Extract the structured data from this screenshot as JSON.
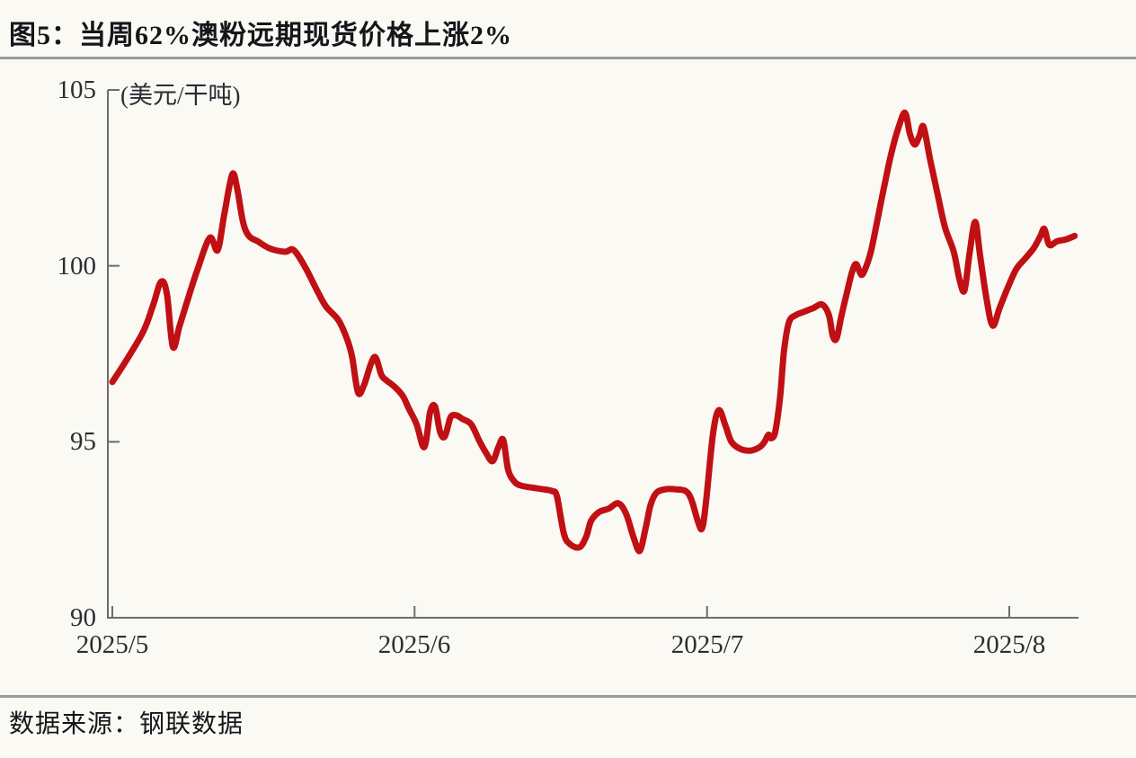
{
  "header": {
    "title": "图5：当周62%澳粉远期现货价格上涨2%"
  },
  "footer": {
    "source_label": "数据来源：钢联数据"
  },
  "chart_data": {
    "type": "line",
    "title": "当周62%澳粉远期现货价格上涨2%",
    "series_name": "62%澳粉远期现货价格",
    "unit_label": "(美元/干吨)",
    "line_color": "#C01014",
    "axis_color": "#6b6b70",
    "ylabel": "美元/干吨",
    "ylim": [
      90,
      105
    ],
    "y_ticks": [
      "105",
      "100",
      "95",
      "90"
    ],
    "x_unit": "days since 2025/5/1",
    "xlim_days": [
      0,
      99.1
    ],
    "x_ticks": [
      {
        "day": 0,
        "label": "2025/5"
      },
      {
        "day": 31,
        "label": "2025/6"
      },
      {
        "day": 61,
        "label": "2025/7"
      },
      {
        "day": 92,
        "label": "2025/8"
      }
    ],
    "grid": false,
    "legend": "none",
    "points": [
      [
        0,
        96.7
      ],
      [
        1.4,
        97.3
      ],
      [
        3.2,
        98.15
      ],
      [
        4.2,
        98.9
      ],
      [
        5.0,
        99.55
      ],
      [
        5.6,
        99.2
      ],
      [
        6.2,
        97.7
      ],
      [
        6.9,
        98.3
      ],
      [
        7.8,
        99.1
      ],
      [
        8.8,
        99.95
      ],
      [
        10.0,
        100.8
      ],
      [
        10.8,
        100.45
      ],
      [
        11.5,
        101.5
      ],
      [
        12.3,
        102.6
      ],
      [
        12.8,
        102.2
      ],
      [
        13.4,
        101.25
      ],
      [
        14.0,
        100.85
      ],
      [
        14.9,
        100.7
      ],
      [
        16.1,
        100.5
      ],
      [
        17.7,
        100.4
      ],
      [
        18.6,
        100.45
      ],
      [
        19.8,
        99.95
      ],
      [
        21.0,
        99.3
      ],
      [
        21.9,
        98.85
      ],
      [
        23.2,
        98.45
      ],
      [
        24.1,
        97.9
      ],
      [
        24.6,
        97.4
      ],
      [
        25.2,
        96.4
      ],
      [
        25.8,
        96.6
      ],
      [
        26.5,
        97.2
      ],
      [
        27.0,
        97.4
      ],
      [
        27.6,
        96.9
      ],
      [
        28.1,
        96.75
      ],
      [
        29.0,
        96.55
      ],
      [
        29.8,
        96.3
      ],
      [
        30.4,
        95.95
      ],
      [
        31.2,
        95.5
      ],
      [
        32.0,
        94.85
      ],
      [
        32.6,
        95.85
      ],
      [
        33.1,
        96.0
      ],
      [
        33.6,
        95.3
      ],
      [
        34.1,
        95.15
      ],
      [
        34.7,
        95.7
      ],
      [
        35.3,
        95.75
      ],
      [
        35.9,
        95.65
      ],
      [
        36.8,
        95.5
      ],
      [
        37.6,
        95.05
      ],
      [
        38.3,
        94.7
      ],
      [
        39.0,
        94.45
      ],
      [
        39.6,
        94.85
      ],
      [
        40.1,
        95.05
      ],
      [
        40.6,
        94.2
      ],
      [
        41.3,
        93.85
      ],
      [
        42.0,
        93.75
      ],
      [
        43.0,
        93.7
      ],
      [
        44.2,
        93.65
      ],
      [
        45.1,
        93.6
      ],
      [
        45.6,
        93.45
      ],
      [
        46.3,
        92.4
      ],
      [
        46.9,
        92.1
      ],
      [
        47.9,
        92.0
      ],
      [
        48.6,
        92.3
      ],
      [
        49.1,
        92.75
      ],
      [
        49.9,
        93.0
      ],
      [
        50.9,
        93.1
      ],
      [
        51.9,
        93.25
      ],
      [
        52.7,
        92.95
      ],
      [
        53.5,
        92.25
      ],
      [
        54.1,
        91.9
      ],
      [
        54.7,
        92.55
      ],
      [
        55.2,
        93.2
      ],
      [
        55.8,
        93.55
      ],
      [
        56.7,
        93.65
      ],
      [
        57.8,
        93.65
      ],
      [
        58.8,
        93.6
      ],
      [
        59.4,
        93.35
      ],
      [
        60.1,
        92.7
      ],
      [
        60.5,
        92.55
      ],
      [
        60.9,
        93.3
      ],
      [
        61.6,
        95.2
      ],
      [
        62.2,
        95.9
      ],
      [
        62.9,
        95.45
      ],
      [
        63.5,
        95.0
      ],
      [
        64.4,
        94.8
      ],
      [
        65.5,
        94.75
      ],
      [
        66.4,
        94.85
      ],
      [
        66.9,
        95.0
      ],
      [
        67.3,
        95.2
      ],
      [
        67.6,
        95.1
      ],
      [
        68.0,
        95.3
      ],
      [
        68.5,
        96.3
      ],
      [
        68.9,
        97.6
      ],
      [
        69.4,
        98.4
      ],
      [
        70.1,
        98.6
      ],
      [
        71.0,
        98.7
      ],
      [
        71.9,
        98.8
      ],
      [
        72.8,
        98.9
      ],
      [
        73.5,
        98.6
      ],
      [
        73.9,
        98.0
      ],
      [
        74.3,
        97.95
      ],
      [
        74.8,
        98.6
      ],
      [
        75.4,
        99.3
      ],
      [
        75.9,
        99.85
      ],
      [
        76.3,
        100.05
      ],
      [
        76.8,
        99.75
      ],
      [
        77.2,
        99.9
      ],
      [
        77.8,
        100.4
      ],
      [
        78.4,
        101.2
      ],
      [
        79.2,
        102.3
      ],
      [
        79.9,
        103.2
      ],
      [
        80.6,
        103.9
      ],
      [
        81.3,
        104.35
      ],
      [
        81.8,
        103.75
      ],
      [
        82.3,
        103.45
      ],
      [
        82.8,
        103.7
      ],
      [
        83.2,
        103.95
      ],
      [
        83.9,
        103.0
      ],
      [
        84.6,
        102.1
      ],
      [
        85.4,
        101.1
      ],
      [
        86.3,
        100.4
      ],
      [
        86.9,
        99.6
      ],
      [
        87.4,
        99.3
      ],
      [
        87.9,
        100.3
      ],
      [
        88.5,
        101.25
      ],
      [
        89.0,
        100.3
      ],
      [
        89.7,
        99.0
      ],
      [
        90.3,
        98.3
      ],
      [
        91.0,
        98.8
      ],
      [
        91.8,
        99.35
      ],
      [
        92.7,
        99.9
      ],
      [
        93.6,
        100.2
      ],
      [
        94.5,
        100.5
      ],
      [
        95.2,
        100.85
      ],
      [
        95.6,
        101.05
      ],
      [
        96.1,
        100.6
      ],
      [
        96.9,
        100.7
      ],
      [
        97.8,
        100.75
      ],
      [
        98.7,
        100.85
      ]
    ]
  }
}
